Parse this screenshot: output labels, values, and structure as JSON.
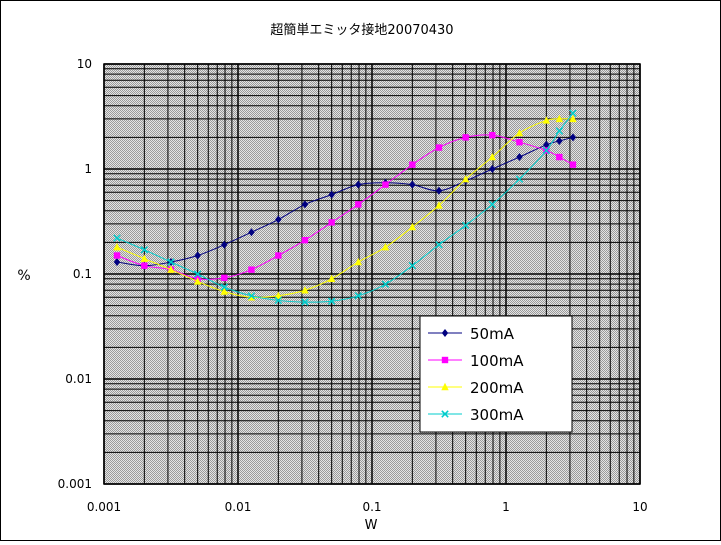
{
  "chart_data": {
    "type": "scatter",
    "title": "超簡単エミッタ接地20070430",
    "xlabel": "W",
    "ylabel": "%",
    "xscale": "log",
    "yscale": "log",
    "xlim": [
      0.001,
      10
    ],
    "ylim": [
      0.001,
      10
    ],
    "x_ticks": [
      "0.001",
      "0.01",
      "0.1",
      "1",
      "10"
    ],
    "y_ticks": [
      "10",
      "1",
      "0.1",
      "0.01",
      "0.001"
    ],
    "grid": true,
    "legend_position": "bottom-right",
    "series": [
      {
        "name": "50mA",
        "color": "#000080",
        "marker": "diamond",
        "points": [
          [
            0.00125,
            0.13
          ],
          [
            0.002,
            0.12
          ],
          [
            0.00316,
            0.13
          ],
          [
            0.005,
            0.15
          ],
          [
            0.0079,
            0.19
          ],
          [
            0.0126,
            0.25
          ],
          [
            0.02,
            0.33
          ],
          [
            0.0316,
            0.46
          ],
          [
            0.05,
            0.57
          ],
          [
            0.079,
            0.71
          ],
          [
            0.126,
            0.74
          ],
          [
            0.2,
            0.71
          ],
          [
            0.316,
            0.62
          ],
          [
            0.5,
            0.77
          ],
          [
            0.79,
            1.0
          ],
          [
            1.26,
            1.3
          ],
          [
            2.0,
            1.7
          ],
          [
            2.5,
            1.85
          ],
          [
            3.16,
            2.0
          ]
        ]
      },
      {
        "name": "100mA",
        "color": "#ff00ff",
        "marker": "square",
        "points": [
          [
            0.00125,
            0.15
          ],
          [
            0.002,
            0.12
          ],
          [
            0.00316,
            0.11
          ],
          [
            0.005,
            0.09
          ],
          [
            0.0079,
            0.092
          ],
          [
            0.0126,
            0.11
          ],
          [
            0.02,
            0.15
          ],
          [
            0.0316,
            0.21
          ],
          [
            0.05,
            0.31
          ],
          [
            0.079,
            0.46
          ],
          [
            0.126,
            0.71
          ],
          [
            0.2,
            1.1
          ],
          [
            0.316,
            1.6
          ],
          [
            0.5,
            2.0
          ],
          [
            0.79,
            2.1
          ],
          [
            1.26,
            1.8
          ],
          [
            2.0,
            1.5
          ],
          [
            2.5,
            1.3
          ],
          [
            3.16,
            1.1
          ]
        ]
      },
      {
        "name": "200mA",
        "color": "#ffff00",
        "marker": "triangle",
        "points": [
          [
            0.00125,
            0.18
          ],
          [
            0.002,
            0.14
          ],
          [
            0.00316,
            0.11
          ],
          [
            0.005,
            0.085
          ],
          [
            0.0079,
            0.068
          ],
          [
            0.0126,
            0.06
          ],
          [
            0.02,
            0.062
          ],
          [
            0.0316,
            0.07
          ],
          [
            0.05,
            0.09
          ],
          [
            0.079,
            0.13
          ],
          [
            0.126,
            0.18
          ],
          [
            0.2,
            0.28
          ],
          [
            0.316,
            0.45
          ],
          [
            0.5,
            0.8
          ],
          [
            0.79,
            1.3
          ],
          [
            1.26,
            2.2
          ],
          [
            2.0,
            2.9
          ],
          [
            2.5,
            3.0
          ],
          [
            3.16,
            3.0
          ]
        ]
      },
      {
        "name": "300mA",
        "color": "#00cccc",
        "marker": "x",
        "points": [
          [
            0.00125,
            0.22
          ],
          [
            0.002,
            0.17
          ],
          [
            0.00316,
            0.13
          ],
          [
            0.005,
            0.1
          ],
          [
            0.0079,
            0.075
          ],
          [
            0.0126,
            0.062
          ],
          [
            0.02,
            0.056
          ],
          [
            0.0316,
            0.054
          ],
          [
            0.05,
            0.055
          ],
          [
            0.079,
            0.062
          ],
          [
            0.126,
            0.08
          ],
          [
            0.2,
            0.12
          ],
          [
            0.316,
            0.19
          ],
          [
            0.5,
            0.29
          ],
          [
            0.79,
            0.46
          ],
          [
            1.26,
            0.8
          ],
          [
            2.0,
            1.5
          ],
          [
            2.5,
            2.3
          ],
          [
            3.16,
            3.4
          ]
        ]
      }
    ]
  }
}
